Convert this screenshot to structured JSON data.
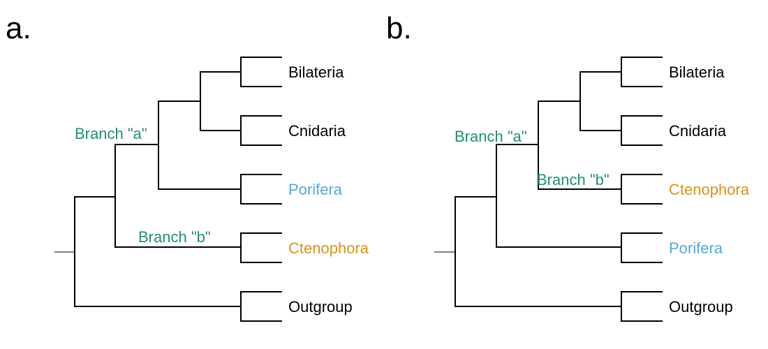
{
  "colors": {
    "black": "#000000",
    "porifera": "#56a8dc",
    "ctenophora": "#d99416",
    "branch_label": "#22906a"
  },
  "panels": [
    {
      "label": "a.",
      "taxa": [
        {
          "name": "Bilateria",
          "color": "black"
        },
        {
          "name": "Cnidaria",
          "color": "black"
        },
        {
          "name": "Porifera",
          "color": "porifera"
        },
        {
          "name": "Ctenophora",
          "color": "ctenophora"
        },
        {
          "name": "Outgroup",
          "color": "black"
        }
      ],
      "branch_labels": [
        {
          "text": "Branch \"a\""
        },
        {
          "text": "Branch \"b\""
        }
      ]
    },
    {
      "label": "b.",
      "taxa": [
        {
          "name": "Bilateria",
          "color": "black"
        },
        {
          "name": "Cnidaria",
          "color": "black"
        },
        {
          "name": "Ctenophora",
          "color": "ctenophora"
        },
        {
          "name": "Porifera",
          "color": "porifera"
        },
        {
          "name": "Outgroup",
          "color": "black"
        }
      ],
      "branch_labels": [
        {
          "text": "Branch \"a\""
        },
        {
          "text": "Branch \"b\""
        }
      ]
    }
  ]
}
